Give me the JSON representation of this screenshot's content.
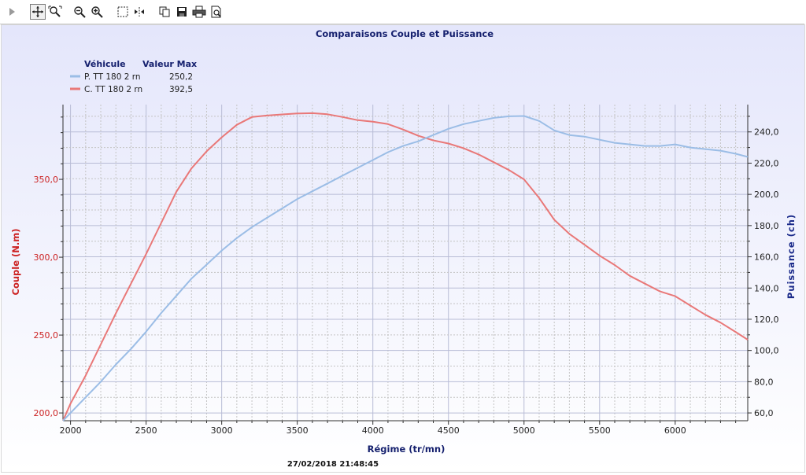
{
  "toolbar": {
    "icons": [
      "play-icon",
      "pan-icon",
      "zoom-area-icon",
      "zoom-out-icon",
      "zoom-in-icon",
      "select-icon",
      "cursor-icon",
      "copy-icon",
      "save-icon",
      "print-icon",
      "print-preview-icon"
    ]
  },
  "footer": {
    "timestamp": "27/02/2018 21:48:45"
  },
  "legend": {
    "header_vehicle": "Véhicule",
    "header_max": "Valeur Max",
    "entries": [
      {
        "name": "P. TT 180 2 rn",
        "max": "250,2",
        "color": "#9bbde6"
      },
      {
        "name": "C. TT 180 2 rn",
        "max": "392,5",
        "color": "#e97878"
      }
    ]
  },
  "chart_data": {
    "type": "line",
    "title": "Comparaisons Couple et Puissance",
    "xlabel": "Régime (tr/mn)",
    "ylabel_left": "Couple (N.m)",
    "ylabel_right": "Puissance (ch)",
    "xlim": [
      1950,
      6480
    ],
    "ylim_left": [
      195,
      398
    ],
    "ylim_right": [
      55,
      257.5
    ],
    "x_ticks": [
      2000,
      2500,
      3000,
      3500,
      4000,
      4500,
      5000,
      5500,
      6000
    ],
    "x_tick_labels": [
      "2000",
      "2500",
      "3000",
      "3500",
      "4000",
      "4500",
      "5000",
      "5500",
      "6000"
    ],
    "y_left_ticks": [
      200,
      250,
      300,
      350
    ],
    "y_left_tick_labels": [
      "200,0",
      "250,0",
      "300,0",
      "350,0"
    ],
    "y_right_ticks": [
      60,
      80,
      100,
      120,
      140,
      160,
      180,
      200,
      220,
      240
    ],
    "y_right_tick_labels": [
      "60,0",
      "80,0",
      "100,0",
      "120,0",
      "140,0",
      "160,0",
      "180,0",
      "200,0",
      "220,0",
      "240,0"
    ],
    "grid": true,
    "legend_position": "top-left",
    "colors": {
      "left_axis": "#cc2222",
      "right_axis": "#1a2a8a",
      "title": "#15206e"
    },
    "series": [
      {
        "name": "C. TT 180 2 rn",
        "axis": "left",
        "color": "#e97878",
        "x": [
          1950,
          2000,
          2100,
          2200,
          2300,
          2400,
          2500,
          2600,
          2700,
          2800,
          2900,
          3000,
          3100,
          3200,
          3300,
          3400,
          3500,
          3600,
          3700,
          3800,
          3900,
          4000,
          4100,
          4200,
          4300,
          4400,
          4500,
          4600,
          4700,
          4800,
          4900,
          5000,
          5100,
          5200,
          5300,
          5400,
          5500,
          5600,
          5700,
          5800,
          5900,
          6000,
          6100,
          6200,
          6300,
          6400,
          6480
        ],
        "y": [
          195,
          206,
          224,
          244,
          264,
          283,
          302,
          322,
          342,
          357,
          368,
          377,
          385,
          390,
          391,
          391.7,
          392.3,
          392.5,
          391.8,
          390,
          388,
          387,
          385.5,
          382,
          378,
          375,
          373,
          370,
          366,
          361,
          356,
          350,
          338,
          324,
          315,
          308,
          301,
          295,
          288,
          283,
          278,
          275,
          269,
          263,
          258,
          252,
          247
        ]
      },
      {
        "name": "P. TT 180 2 rn",
        "axis": "right",
        "color": "#9bbde6",
        "x": [
          1950,
          2000,
          2100,
          2200,
          2300,
          2400,
          2500,
          2600,
          2700,
          2800,
          2900,
          3000,
          3100,
          3200,
          3300,
          3400,
          3500,
          3600,
          3700,
          3800,
          3900,
          4000,
          4100,
          4200,
          4300,
          4400,
          4500,
          4600,
          4700,
          4800,
          4900,
          5000,
          5100,
          5200,
          5300,
          5400,
          5500,
          5600,
          5700,
          5800,
          5900,
          6000,
          6100,
          6200,
          6300,
          6400,
          6480
        ],
        "y": [
          55,
          60,
          70,
          80,
          91,
          101,
          112,
          124,
          135,
          146,
          155,
          164,
          172,
          179,
          185,
          191,
          197,
          202,
          207,
          212,
          217,
          222,
          227,
          231,
          234,
          238,
          242,
          245,
          247,
          249,
          250,
          250.2,
          247,
          241,
          238,
          237,
          235,
          233,
          232,
          231,
          231,
          232,
          230,
          229,
          228,
          226,
          224
        ]
      }
    ]
  }
}
